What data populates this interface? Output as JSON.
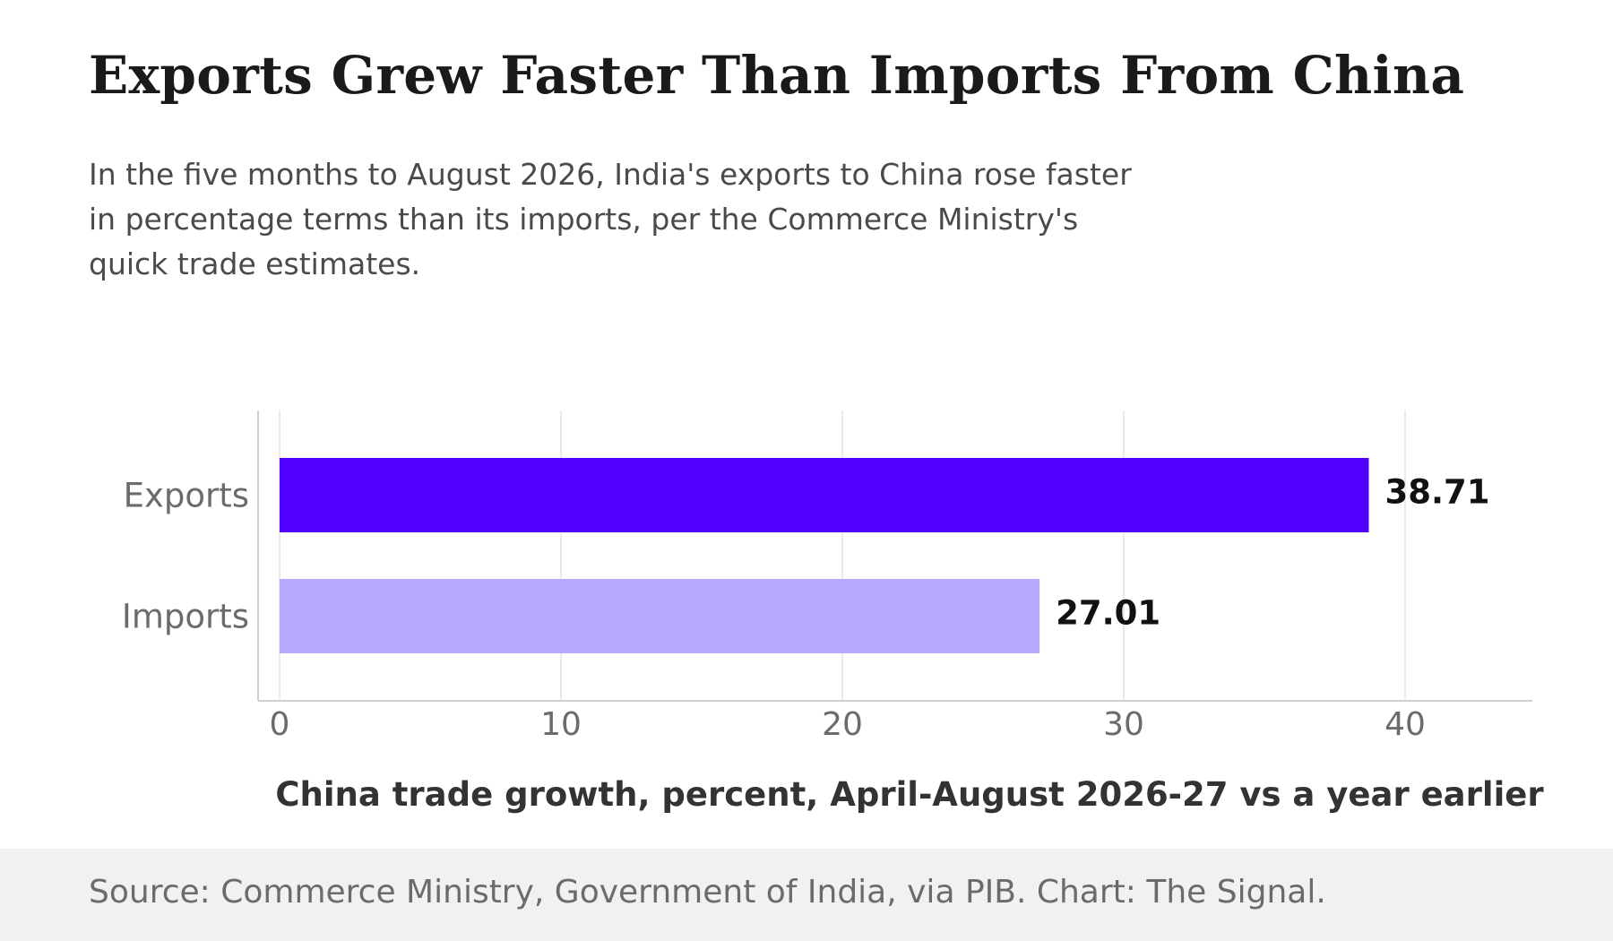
{
  "header": {
    "title": "Exports Grew Faster Than Imports From China",
    "subtitle": "In the five months to August 2026, India's exports to China rose faster in percentage terms than its imports, per the Commerce Ministry's quick trade estimates."
  },
  "chart_data": {
    "type": "bar",
    "orientation": "horizontal",
    "categories": [
      "Exports",
      "Imports"
    ],
    "values": [
      38.71,
      27.01
    ],
    "value_labels": [
      "38.71",
      "27.01"
    ],
    "colors": [
      "#5200ff",
      "#b8a8ff"
    ],
    "xlabel": "China trade growth, percent, April-August 2026-27 vs a year earlier",
    "ylabel": "",
    "xlim": [
      0,
      44.5
    ],
    "xticks": [
      0,
      10,
      20,
      30,
      40
    ],
    "grid": true,
    "legend": "none"
  },
  "footer": {
    "source": "Source: Commerce Ministry, Government of India, via PIB. Chart: The Signal."
  }
}
